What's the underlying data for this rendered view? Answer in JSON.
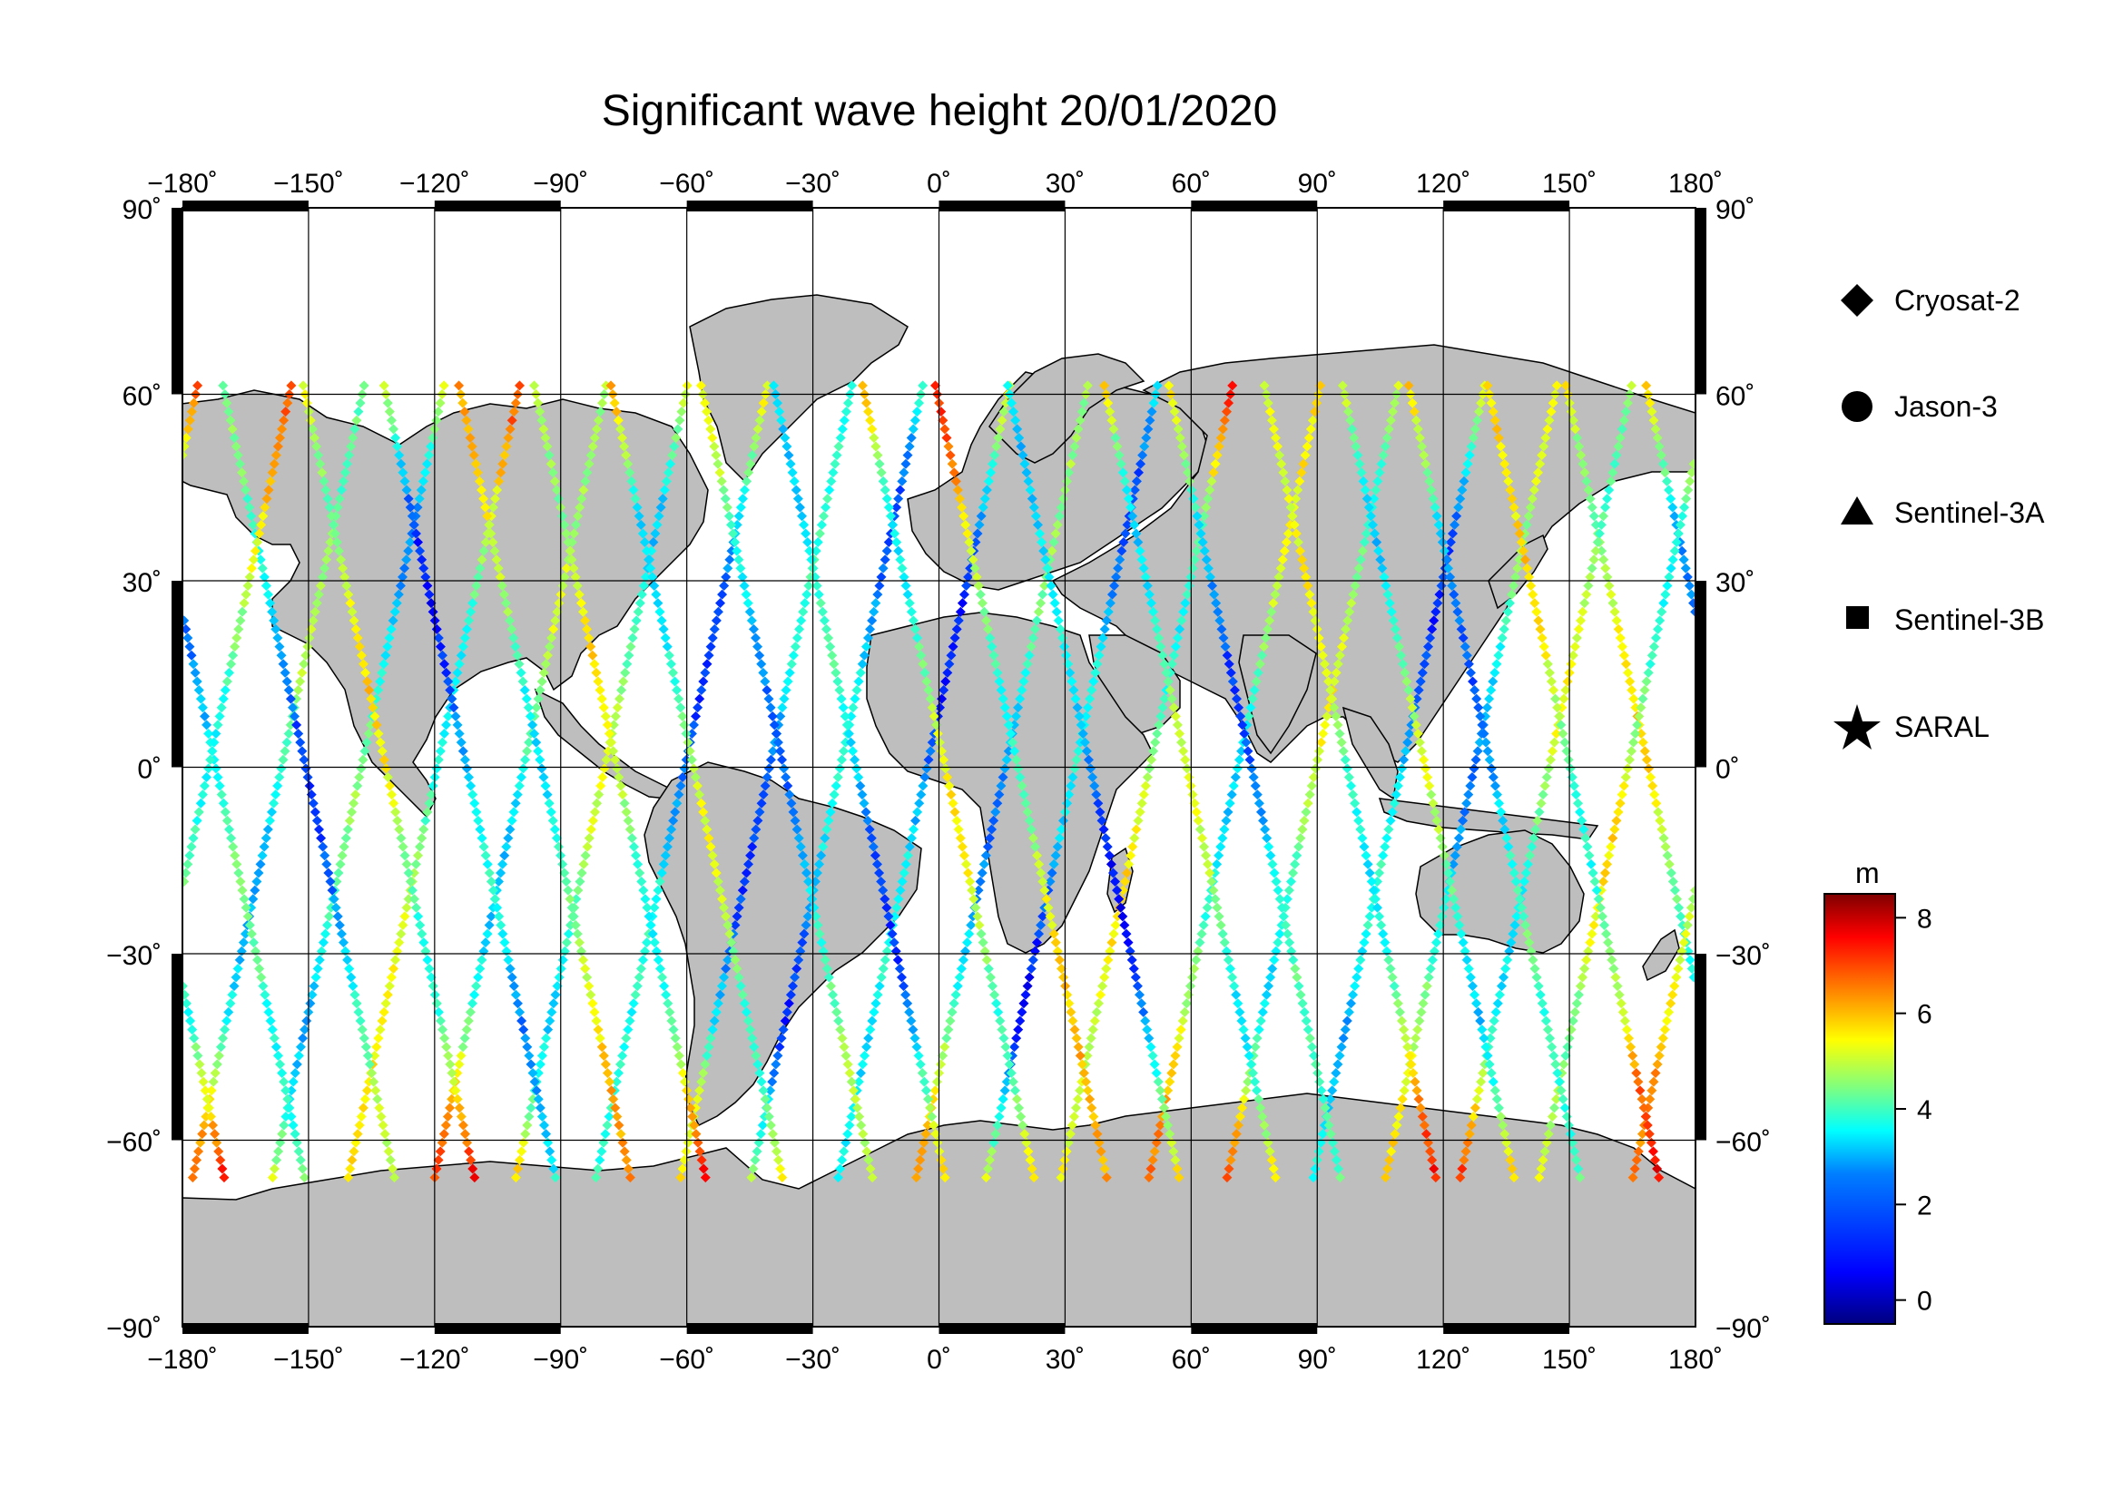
{
  "title": "Significant wave height 20/01/2020",
  "map": {
    "lon_ticks": [
      "−180˚",
      "−150˚",
      "−120˚",
      "−90˚",
      "−60˚",
      "−30˚",
      "0˚",
      "30˚",
      "60˚",
      "90˚",
      "120˚",
      "150˚",
      "180˚"
    ],
    "lat_ticks": [
      "90˚",
      "60˚",
      "30˚",
      "0˚",
      "−30˚",
      "−60˚",
      "−90˚"
    ],
    "lon_range": [
      -180,
      180
    ],
    "lat_range": [
      -90,
      90
    ],
    "grid": true,
    "land_color": "#bebebe",
    "ocean_color": "#ffffff"
  },
  "legend": {
    "items": [
      {
        "marker": "diamond",
        "label": "Cryosat-2"
      },
      {
        "marker": "circle",
        "label": "Jason-3"
      },
      {
        "marker": "triangle",
        "label": "Sentinel-3A"
      },
      {
        "marker": "square",
        "label": "Sentinel-3B"
      },
      {
        "marker": "star",
        "label": "SARAL"
      }
    ]
  },
  "colorbar": {
    "unit": "m",
    "ticks": [
      "0",
      "2",
      "4",
      "6",
      "8"
    ],
    "range": [
      -0.5,
      8.5
    ],
    "colormap": [
      "#00007f",
      "#0000ff",
      "#007fff",
      "#00ffff",
      "#7fff7f",
      "#ffff00",
      "#ff7f00",
      "#ff0000",
      "#7f0000"
    ]
  }
}
